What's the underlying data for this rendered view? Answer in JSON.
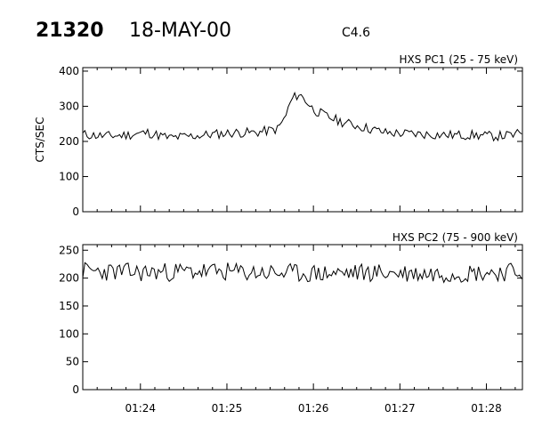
{
  "header": {
    "event_id": "21320",
    "date": "18-MAY-00",
    "flare_class": "C4.6"
  },
  "chart_data": [
    {
      "type": "line",
      "title": "HXS PC1 (25 - 75 keV)",
      "xlabel": "",
      "ylabel": "CTS/SEC",
      "x_range": [
        "01:23:20",
        "01:28:25"
      ],
      "ylim": [
        0,
        410
      ],
      "yticks": [
        "0",
        "100",
        "200",
        "300",
        "400"
      ],
      "xticks": [
        "01:24",
        "01:25",
        "01:26",
        "01:27",
        "01:28"
      ],
      "series": [
        {
          "x": [
            "01:23:20",
            "01:23:35",
            "01:23:50",
            "01:24:05",
            "01:24:20",
            "01:24:35",
            "01:24:50",
            "01:25:05",
            "01:25:20",
            "01:25:35",
            "01:25:40",
            "01:25:45",
            "01:25:50",
            "01:25:55",
            "01:26:00",
            "01:26:10",
            "01:26:20",
            "01:26:35",
            "01:26:50",
            "01:27:05",
            "01:27:20",
            "01:27:35",
            "01:27:50",
            "01:28:05",
            "01:28:20",
            "01:28:25"
          ],
          "values": [
            220,
            215,
            218,
            225,
            210,
            215,
            220,
            225,
            225,
            235,
            265,
            320,
            335,
            315,
            290,
            270,
            255,
            240,
            225,
            222,
            220,
            218,
            218,
            215,
            218,
            228
          ]
        }
      ]
    },
    {
      "type": "line",
      "title": "HXS PC2 (75 - 900 keV)",
      "xlabel": "",
      "ylabel": "",
      "x_range": [
        "01:23:20",
        "01:28:25"
      ],
      "ylim": [
        0,
        260
      ],
      "yticks": [
        "0",
        "50",
        "100",
        "150",
        "200",
        "250"
      ],
      "xticks": [
        "01:24",
        "01:25",
        "01:26",
        "01:27",
        "01:28"
      ],
      "series": [
        {
          "x": [
            "01:23:20",
            "01:24:00",
            "01:24:40",
            "01:25:20",
            "01:26:00",
            "01:26:40",
            "01:27:20",
            "01:28:00",
            "01:28:25"
          ],
          "values": [
            213,
            210,
            212,
            210,
            208,
            210,
            208,
            210,
            212
          ]
        }
      ]
    }
  ]
}
